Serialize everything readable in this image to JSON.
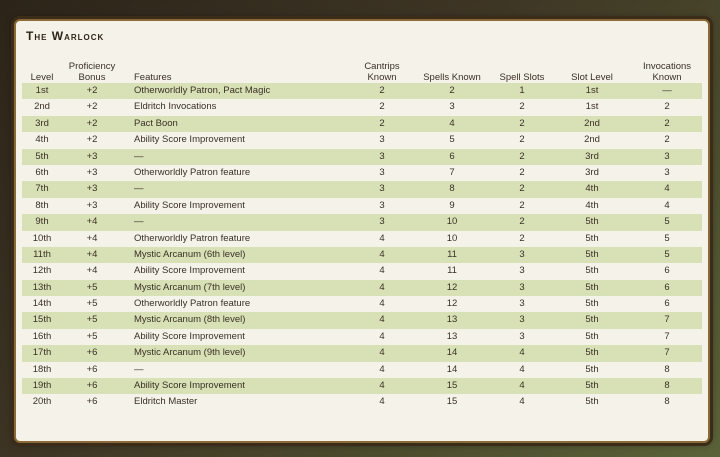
{
  "title": "The Warlock",
  "columns": [
    "Level",
    "Proficiency Bonus",
    "Features",
    "Cantrips Known",
    "Spells Known",
    "Spell Slots",
    "Slot Level",
    "Invocations Known"
  ],
  "rows": [
    [
      "1st",
      "+2",
      "Otherworldly Patron, Pact Magic",
      "2",
      "2",
      "1",
      "1st",
      "—"
    ],
    [
      "2nd",
      "+2",
      "Eldritch Invocations",
      "2",
      "3",
      "2",
      "1st",
      "2"
    ],
    [
      "3rd",
      "+2",
      "Pact Boon",
      "2",
      "4",
      "2",
      "2nd",
      "2"
    ],
    [
      "4th",
      "+2",
      "Ability Score Improvement",
      "3",
      "5",
      "2",
      "2nd",
      "2"
    ],
    [
      "5th",
      "+3",
      "—",
      "3",
      "6",
      "2",
      "3rd",
      "3"
    ],
    [
      "6th",
      "+3",
      "Otherworldly Patron feature",
      "3",
      "7",
      "2",
      "3rd",
      "3"
    ],
    [
      "7th",
      "+3",
      "—",
      "3",
      "8",
      "2",
      "4th",
      "4"
    ],
    [
      "8th",
      "+3",
      "Ability Score Improvement",
      "3",
      "9",
      "2",
      "4th",
      "4"
    ],
    [
      "9th",
      "+4",
      "—",
      "3",
      "10",
      "2",
      "5th",
      "5"
    ],
    [
      "10th",
      "+4",
      "Otherworldly Patron feature",
      "4",
      "10",
      "2",
      "5th",
      "5"
    ],
    [
      "11th",
      "+4",
      "Mystic Arcanum (6th level)",
      "4",
      "11",
      "3",
      "5th",
      "5"
    ],
    [
      "12th",
      "+4",
      "Ability Score Improvement",
      "4",
      "11",
      "3",
      "5th",
      "6"
    ],
    [
      "13th",
      "+5",
      "Mystic Arcanum (7th level)",
      "4",
      "12",
      "3",
      "5th",
      "6"
    ],
    [
      "14th",
      "+5",
      "Otherworldly Patron feature",
      "4",
      "12",
      "3",
      "5th",
      "6"
    ],
    [
      "15th",
      "+5",
      "Mystic Arcanum (8th level)",
      "4",
      "13",
      "3",
      "5th",
      "7"
    ],
    [
      "16th",
      "+5",
      "Ability Score Improvement",
      "4",
      "13",
      "3",
      "5th",
      "7"
    ],
    [
      "17th",
      "+6",
      "Mystic Arcanum (9th level)",
      "4",
      "14",
      "4",
      "5th",
      "7"
    ],
    [
      "18th",
      "+6",
      "—",
      "4",
      "14",
      "4",
      "5th",
      "8"
    ],
    [
      "19th",
      "+6",
      "Ability Score Improvement",
      "4",
      "15",
      "4",
      "5th",
      "8"
    ],
    [
      "20th",
      "+6",
      "Eldritch Master",
      "4",
      "15",
      "4",
      "5th",
      "8"
    ]
  ],
  "colors": {
    "stripe": "#d8e0b6",
    "paper": "#f4f2e9",
    "border": "#8a6a36"
  }
}
